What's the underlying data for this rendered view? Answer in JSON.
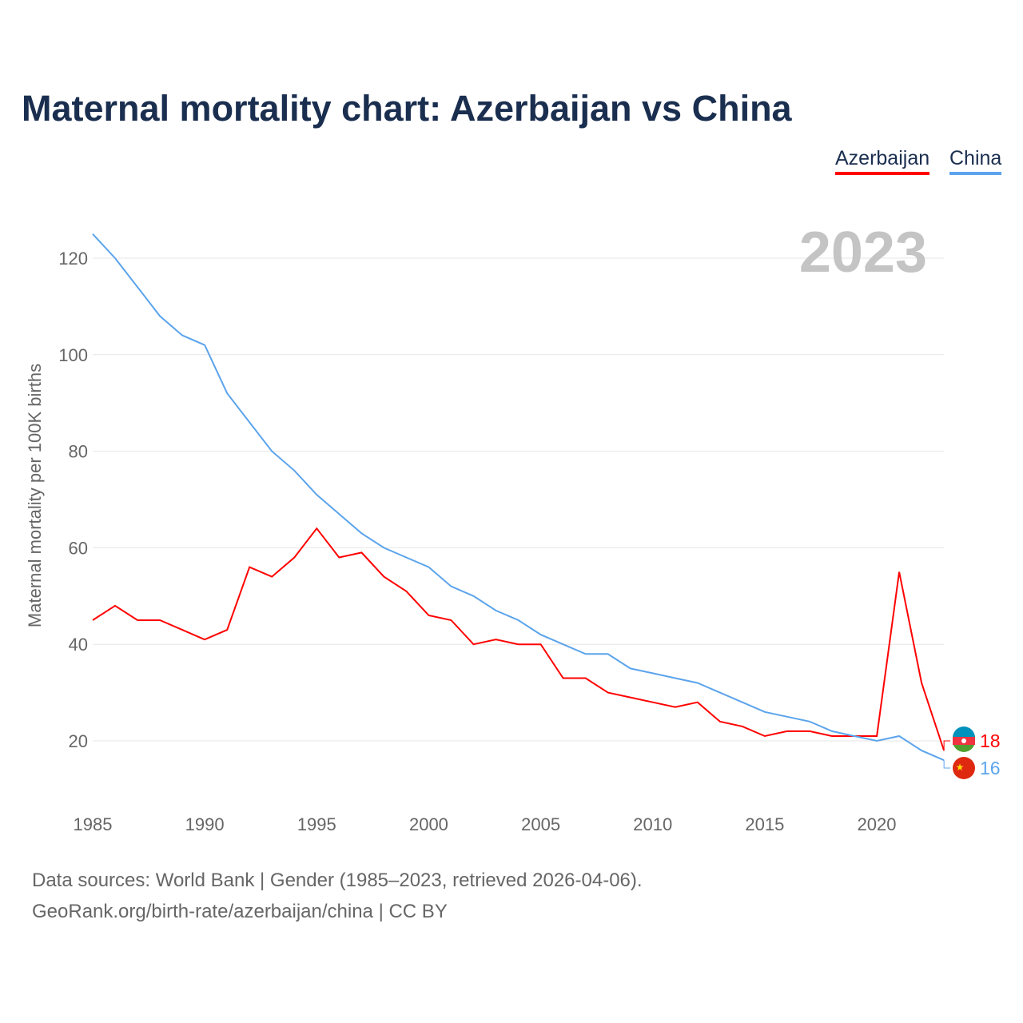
{
  "chart_data": {
    "type": "line",
    "title": "Maternal mortality chart: Azerbaijan vs China",
    "ylabel": "Maternal mortality per 100K births",
    "xlabel": "",
    "year_label": "2023",
    "xlim": [
      1985,
      2023
    ],
    "ylim": [
      10,
      130
    ],
    "x_ticks": [
      1985,
      1990,
      1995,
      2000,
      2005,
      2010,
      2015,
      2020
    ],
    "y_ticks": [
      20,
      40,
      60,
      80,
      100,
      120
    ],
    "grid": true,
    "legend_position": "top-right",
    "x": [
      1985,
      1986,
      1987,
      1988,
      1989,
      1990,
      1991,
      1992,
      1993,
      1994,
      1995,
      1996,
      1997,
      1998,
      1999,
      2000,
      2001,
      2002,
      2003,
      2004,
      2005,
      2006,
      2007,
      2008,
      2009,
      2010,
      2011,
      2012,
      2013,
      2014,
      2015,
      2016,
      2017,
      2018,
      2019,
      2020,
      2021,
      2022,
      2023
    ],
    "series": [
      {
        "name": "Azerbaijan",
        "color": "#ff0000",
        "end_label": "18",
        "values": [
          45,
          48,
          45,
          45,
          43,
          41,
          43,
          56,
          54,
          58,
          64,
          58,
          59,
          54,
          51,
          46,
          45,
          40,
          41,
          40,
          40,
          33,
          33,
          30,
          29,
          28,
          27,
          28,
          24,
          23,
          21,
          22,
          22,
          21,
          21,
          21,
          55,
          32,
          18
        ]
      },
      {
        "name": "China",
        "color": "#5ba4ec",
        "end_label": "16",
        "values": [
          125,
          120,
          114,
          108,
          104,
          102,
          92,
          86,
          80,
          76,
          71,
          67,
          63,
          60,
          58,
          56,
          52,
          50,
          47,
          45,
          42,
          40,
          38,
          38,
          35,
          34,
          33,
          32,
          30,
          28,
          26,
          25,
          24,
          22,
          21,
          20,
          21,
          18,
          16
        ]
      }
    ]
  },
  "footer": {
    "line1": "Data sources: World Bank | Gender (1985–2023, retrieved 2026-04-06).",
    "line2": "GeoRank.org/birth-rate/azerbaijan/china | CC BY"
  }
}
